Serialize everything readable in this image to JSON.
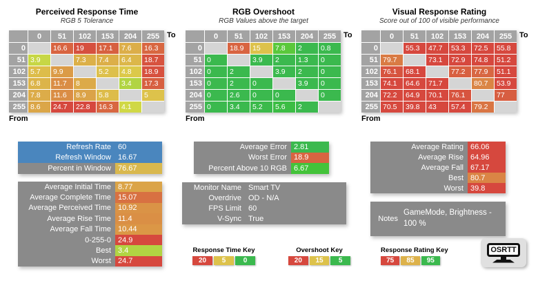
{
  "axis": {
    "to": "To",
    "from": "From"
  },
  "scales": {
    "response": {
      "stops": [
        [
          0,
          "#3bb94e"
        ],
        [
          5,
          "#ddc24b"
        ],
        [
          20,
          "#d6483e"
        ]
      ]
    },
    "overshoot": {
      "stops": [
        [
          5,
          "#3bb94e"
        ],
        [
          15,
          "#ddc24b"
        ],
        [
          20,
          "#d6483e"
        ]
      ]
    },
    "rating": {
      "stops": [
        [
          75,
          "#d6483e"
        ],
        [
          85,
          "#ddb24b"
        ],
        [
          95,
          "#3bb94e"
        ]
      ]
    }
  },
  "tables": [
    {
      "title": "Perceived Response Time",
      "subtitle": "RGB 5 Tolerance",
      "scale": "response",
      "columns": [
        "0",
        "51",
        "102",
        "153",
        "204",
        "255"
      ],
      "rows": [
        {
          "label": "0",
          "cells": [
            null,
            "16.6",
            "19",
            "17.1",
            "7.6",
            "16.3"
          ]
        },
        {
          "label": "51",
          "cells": [
            "3.9",
            null,
            "7.3",
            "7.4",
            "6.4",
            "18.7"
          ]
        },
        {
          "label": "102",
          "cells": [
            "5.7",
            "9.9",
            null,
            "5.2",
            "4.8",
            "18.9"
          ]
        },
        {
          "label": "153",
          "cells": [
            "6.8",
            "11.7",
            "8",
            null,
            "3.4",
            "17.3"
          ]
        },
        {
          "label": "204",
          "cells": [
            "7.8",
            "11.6",
            "8.9",
            "5.8",
            null,
            "5"
          ]
        },
        {
          "label": "255",
          "cells": [
            "8.6",
            "24.7",
            "22.8",
            "16.3",
            "4.1",
            null
          ]
        }
      ]
    },
    {
      "title": "RGB Overshoot",
      "subtitle": "RGB Values above the target",
      "scale": "overshoot",
      "columns": [
        "0",
        "51",
        "102",
        "153",
        "204",
        "255"
      ],
      "rows": [
        {
          "label": "0",
          "cells": [
            null,
            "18.9",
            "15",
            "7.8",
            "2",
            "0.8"
          ]
        },
        {
          "label": "51",
          "cells": [
            "0",
            null,
            "3.9",
            "2",
            "1.3",
            "0"
          ]
        },
        {
          "label": "102",
          "cells": [
            "0",
            "2",
            null,
            "3.9",
            "2",
            "0"
          ]
        },
        {
          "label": "153",
          "cells": [
            "0",
            "2",
            "0",
            null,
            "3.9",
            "0"
          ]
        },
        {
          "label": "204",
          "cells": [
            "0",
            "2.6",
            "0",
            "0",
            null,
            "0"
          ]
        },
        {
          "label": "255",
          "cells": [
            "0",
            "3.4",
            "5.2",
            "5.6",
            "2",
            null
          ]
        }
      ]
    },
    {
      "title": "Visual Response Rating",
      "subtitle": "Score out of 100 of visible performance",
      "scale": "rating",
      "columns": [
        "0",
        "51",
        "102",
        "153",
        "204",
        "255"
      ],
      "rows": [
        {
          "label": "0",
          "cells": [
            null,
            "55.3",
            "47.7",
            "53.3",
            "72.5",
            "55.8"
          ]
        },
        {
          "label": "51",
          "cells": [
            "79.7",
            null,
            "73.1",
            "72.9",
            "74.8",
            "51.2"
          ]
        },
        {
          "label": "102",
          "cells": [
            "76.1",
            "68.1",
            null,
            "77.2",
            "77.9",
            "51.1"
          ]
        },
        {
          "label": "153",
          "cells": [
            "74.1",
            "64.6",
            "71.7",
            null,
            "80.7",
            "53.9"
          ]
        },
        {
          "label": "204",
          "cells": [
            "72.2",
            "64.9",
            "70.1",
            "76.1",
            null,
            "77"
          ]
        },
        {
          "label": "255",
          "cells": [
            "70.5",
            "39.8",
            "43",
            "57.4",
            "79.2",
            null
          ]
        }
      ]
    }
  ],
  "panels": {
    "refresh": {
      "rows": [
        {
          "label": "Refresh Rate",
          "value": "60",
          "row_color": "#4a86be"
        },
        {
          "label": "Refresh Window",
          "value": "16.67",
          "row_color": "#4a86be"
        },
        {
          "label": "Percent in Window",
          "value": "76.67",
          "value_color": "#d9b84e"
        }
      ]
    },
    "response_stats": {
      "rows": [
        {
          "label": "Average Initial Time",
          "value": "8.77",
          "scale": "response"
        },
        {
          "label": "Average Complete Time",
          "value": "15.07",
          "scale": "response"
        },
        {
          "label": "Average Perceived Time",
          "value": "10.92",
          "scale": "response"
        },
        {
          "label": "Average Rise Time",
          "value": "11.4",
          "scale": "response"
        },
        {
          "label": "Average Fall Time",
          "value": "10.44",
          "scale": "response"
        },
        {
          "label": "0-255-0",
          "value": "24.9",
          "scale": "response"
        },
        {
          "label": "Best",
          "value": "3.4",
          "scale": "response"
        },
        {
          "label": "Worst",
          "value": "24.7",
          "scale": "response"
        }
      ]
    },
    "error_stats": {
      "rows": [
        {
          "label": "Average Error",
          "value": "2.81",
          "scale": "overshoot"
        },
        {
          "label": "Worst Error",
          "value": "18.9",
          "scale": "overshoot"
        },
        {
          "label": "Percent Above 10 RGB",
          "value": "6.67",
          "scale": "overshoot"
        }
      ]
    },
    "monitor_info": {
      "rows": [
        {
          "label": "Monitor Name",
          "value": "Smart TV"
        },
        {
          "label": "Overdrive",
          "value": "OD - N/A"
        },
        {
          "label": "FPS Limit",
          "value": "60"
        },
        {
          "label": "V-Sync",
          "value": "True"
        }
      ]
    },
    "rating_stats": {
      "rows": [
        {
          "label": "Average Rating",
          "value": "66.06",
          "scale": "rating"
        },
        {
          "label": "Average Rise",
          "value": "64.96",
          "scale": "rating"
        },
        {
          "label": "Average Fall",
          "value": "67.17",
          "scale": "rating"
        },
        {
          "label": "Best",
          "value": "80.7",
          "scale": "rating"
        },
        {
          "label": "Worst",
          "value": "39.8",
          "scale": "rating"
        }
      ]
    },
    "notes": {
      "rows": [
        {
          "label": "Notes",
          "value": "GameMode, Brightness - 100 %"
        }
      ]
    }
  },
  "keys": [
    {
      "title": "Response Time Key",
      "swatches": [
        {
          "value": "20",
          "color": "#d6483e"
        },
        {
          "value": "5",
          "color": "#ddc24b"
        },
        {
          "value": "0",
          "color": "#3bb94e"
        }
      ]
    },
    {
      "title": "Overshoot Key",
      "swatches": [
        {
          "value": "20",
          "color": "#d6483e"
        },
        {
          "value": "15",
          "color": "#ddc24b"
        },
        {
          "value": "5",
          "color": "#3bb94e"
        }
      ]
    },
    {
      "title": "Response Rating Key",
      "swatches": [
        {
          "value": "75",
          "color": "#d6483e"
        },
        {
          "value": "85",
          "color": "#ddb24b"
        },
        {
          "value": "95",
          "color": "#3bb94e"
        }
      ]
    }
  ],
  "logo": {
    "text": "OSRTT"
  }
}
